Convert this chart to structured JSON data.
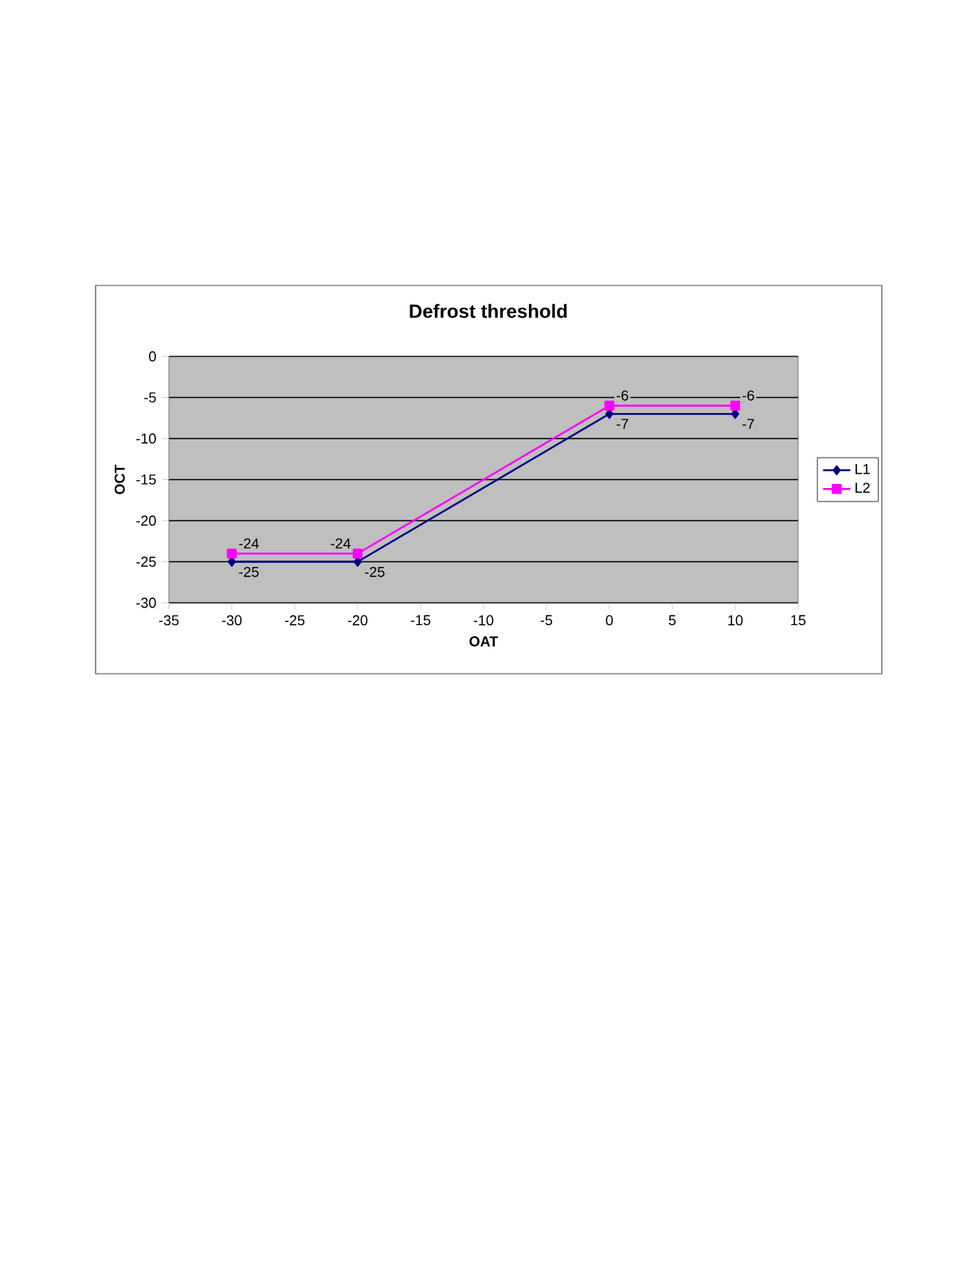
{
  "chart_data": {
    "type": "line",
    "title": "Defrost threshold",
    "xlabel": "OAT",
    "ylabel": "OCT",
    "x": [
      -30,
      -20,
      0,
      10
    ],
    "series": [
      {
        "name": "L1",
        "color": "#000080",
        "marker": "diamond",
        "values": [
          -25,
          -25,
          -7,
          -7
        ]
      },
      {
        "name": "L2",
        "color": "#ff00ff",
        "marker": "square",
        "values": [
          -24,
          -24,
          -6,
          -6
        ]
      }
    ],
    "xlim": [
      -35,
      15
    ],
    "xticks": [
      -35,
      -30,
      -25,
      -20,
      -15,
      -10,
      -5,
      0,
      5,
      10,
      15
    ],
    "ylim": [
      -30,
      0
    ],
    "yticks": [
      -30,
      -25,
      -20,
      -15,
      -10,
      -5,
      0
    ],
    "grid": "y",
    "legend": "right",
    "data_labels": true,
    "line_style": "solid"
  }
}
